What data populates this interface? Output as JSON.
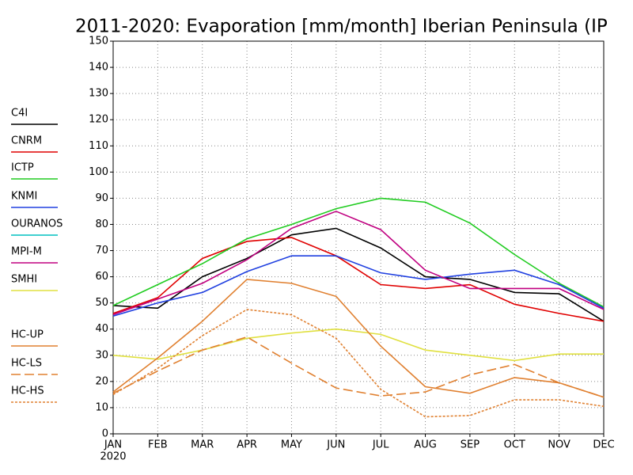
{
  "chart_data": {
    "type": "line",
    "title": "2011-2020: Evaporation [mm/month] Iberian Peninsula (IP",
    "categories": [
      "JAN",
      "FEB",
      "MAR",
      "APR",
      "MAY",
      "JUN",
      "JUL",
      "AUG",
      "SEP",
      "OCT",
      "NOV",
      "DEC"
    ],
    "x_sublabel": "2020",
    "ylim": [
      0,
      150
    ],
    "yticks": [
      0,
      10,
      20,
      30,
      40,
      50,
      60,
      70,
      80,
      90,
      100,
      110,
      120,
      130,
      140,
      150
    ],
    "grid": true,
    "legend": "left",
    "series": [
      {
        "name": "C4I",
        "color": "#000000",
        "dash": "solid",
        "values": [
          49,
          48,
          60,
          67,
          76,
          78.5,
          71,
          60,
          59,
          54,
          53.5,
          43
        ]
      },
      {
        "name": "CNRM",
        "color": "#e00000",
        "dash": "solid",
        "values": [
          46,
          52,
          67,
          73.5,
          75,
          68,
          57,
          55.5,
          57,
          49.5,
          46,
          43
        ]
      },
      {
        "name": "ICTP",
        "color": "#20cc20",
        "dash": "solid",
        "values": [
          49,
          57,
          65,
          74.5,
          80,
          86,
          90,
          88.5,
          80.5,
          68.5,
          57.5,
          48.5
        ]
      },
      {
        "name": "KNMI",
        "color": "#2040e0",
        "dash": "solid",
        "values": [
          45,
          50,
          54,
          62,
          68,
          68,
          61.5,
          59,
          61,
          62.5,
          57,
          48
        ]
      },
      {
        "name": "OURANOS",
        "color": "#00c0c0",
        "dash": "solid",
        "values": [
          null,
          null,
          null,
          null,
          null,
          null,
          null,
          null,
          null,
          null,
          null,
          null
        ]
      },
      {
        "name": "MPI-M",
        "color": "#c00080",
        "dash": "solid",
        "values": [
          45.5,
          51.5,
          57.5,
          66.5,
          78.5,
          85,
          78,
          62.5,
          55.5,
          55.5,
          55.5,
          47.5
        ]
      },
      {
        "name": "SMHI",
        "color": "#e0e040",
        "dash": "solid",
        "values": [
          30,
          28.5,
          32,
          36.5,
          38.5,
          40,
          38,
          32,
          30,
          28,
          30.5,
          30.5
        ]
      },
      {
        "name": "HC-UP",
        "color": "#e08030",
        "dash": "solid",
        "values": [
          16,
          29,
          43,
          59,
          57.5,
          52.5,
          33.5,
          18,
          15.5,
          21.5,
          19.5,
          14
        ]
      },
      {
        "name": "HC-LS",
        "color": "#e08030",
        "dash": "dashed",
        "values": [
          15.5,
          24,
          32,
          37,
          27,
          17.5,
          14.5,
          16,
          22.5,
          26.5,
          19.5,
          14
        ]
      },
      {
        "name": "HC-HS",
        "color": "#e08030",
        "dash": "dotted",
        "values": [
          15,
          25,
          37.5,
          47.5,
          45.5,
          36.5,
          17,
          6.5,
          7,
          13,
          13,
          10.5
        ]
      }
    ]
  }
}
